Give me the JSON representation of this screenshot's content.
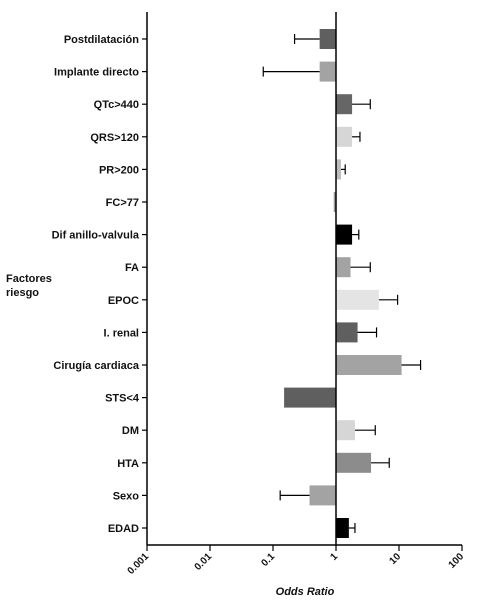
{
  "chart_data": {
    "type": "bar",
    "orientation": "horizontal",
    "x_scale": "log",
    "baseline": 1,
    "xlim": [
      0.001,
      100
    ],
    "x_ticks": [
      "0.001",
      "0.01",
      "0.1",
      "1",
      "10",
      "100"
    ],
    "xlabel": "Odds Ratio",
    "ylabel": "Factores\nriesgo",
    "grid": false,
    "legend": "none",
    "categories": [
      "Postdilatación",
      "Implante directo",
      "QTc>440",
      "QRS>120",
      "PR>200",
      "FC>77",
      "Dif anillo-valvula",
      "FA",
      "EPOC",
      "I. renal",
      "Cirugía cardiaca",
      "STS<4",
      "DM",
      "HTA",
      "Sexo",
      "EDAD"
    ],
    "values": [
      0.55,
      0.55,
      1.8,
      1.8,
      1.2,
      0.92,
      1.8,
      1.7,
      4.8,
      2.2,
      11,
      0.15,
      2.0,
      3.6,
      0.38,
      1.6
    ],
    "error_bars": [
      0.22,
      0.07,
      3.5,
      2.4,
      1.4,
      0.92,
      2.3,
      3.5,
      9.5,
      4.4,
      22,
      0.15,
      4.2,
      7.0,
      0.13,
      2.0
    ],
    "colors": [
      "#5f5f5f",
      "#a3a3a3",
      "#666666",
      "#d6d6d6",
      "#bdbdbd",
      "#9a9a9a",
      "#000000",
      "#a3a3a3",
      "#e4e4e4",
      "#5f5f5f",
      "#a3a3a3",
      "#5f5f5f",
      "#d6d6d6",
      "#8c8c8c",
      "#a3a3a3",
      "#000000"
    ]
  }
}
